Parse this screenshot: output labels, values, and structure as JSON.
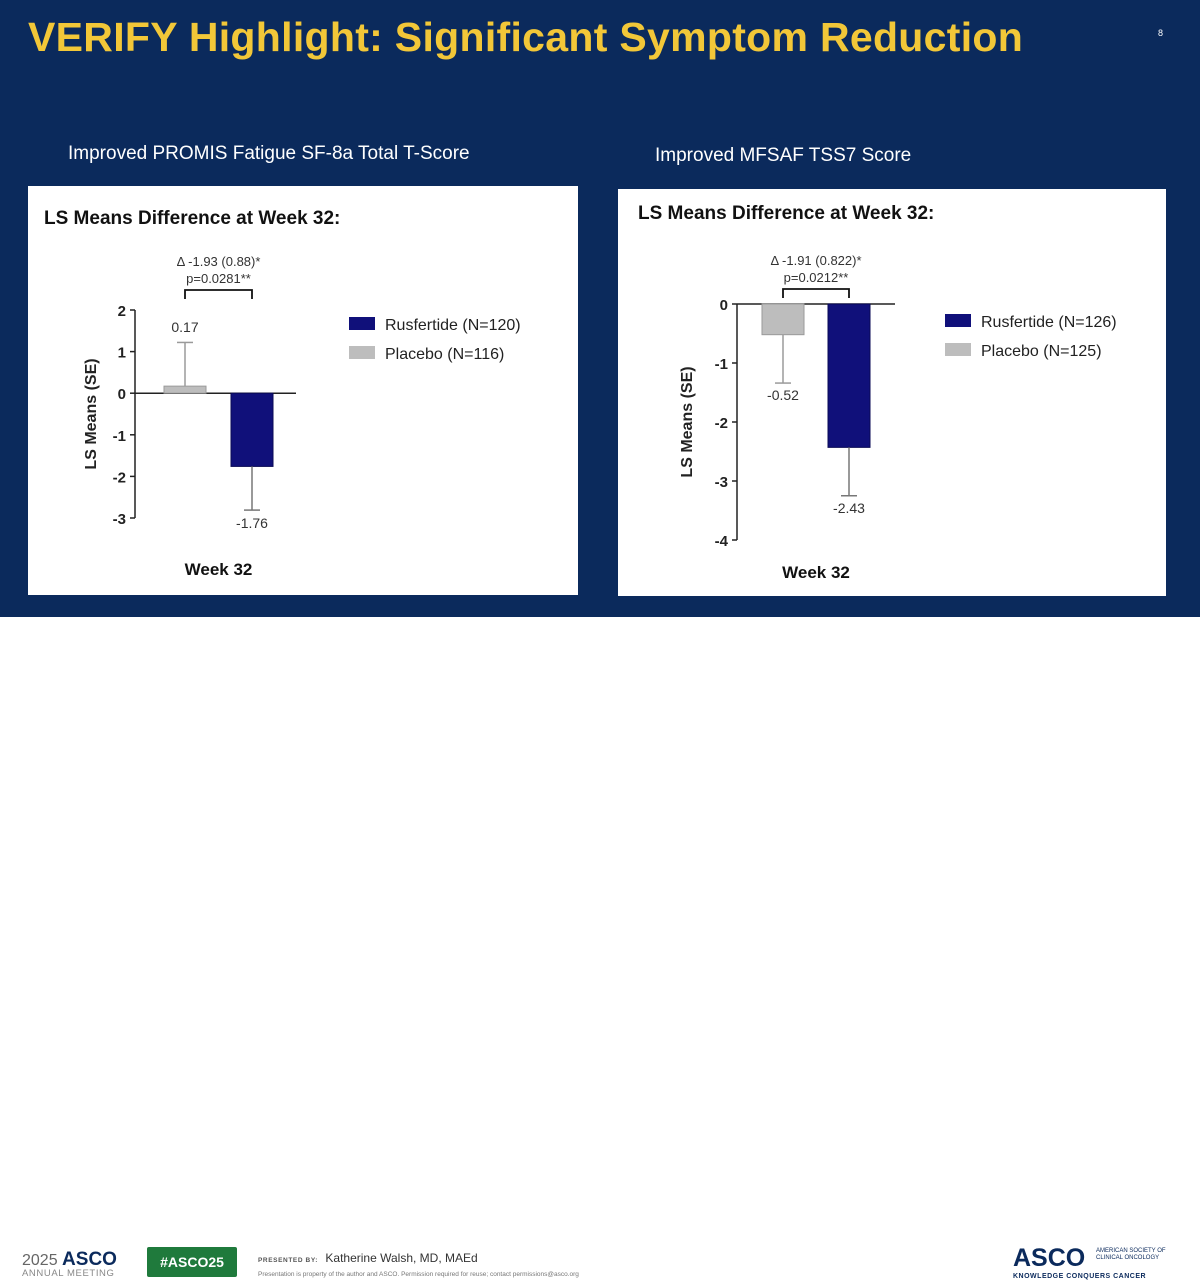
{
  "slide": {
    "title": "VERIFY Highlight: Significant Symptom Reduction",
    "slide_number": "8"
  },
  "colors": {
    "background": "#0b2a5c",
    "title": "#f2c738",
    "rusfertide": "#10107a",
    "placebo": "#bdbdbd"
  },
  "chart_data": [
    {
      "type": "bar",
      "subtitle": "Improved PROMIS Fatigue SF-8a Total T-Score",
      "title": "LS Means Difference at Week 32:",
      "delta_text": "Δ -1.93 (0.88)*",
      "p_text": "p=0.0281**",
      "xlabel": "Week 32",
      "ylabel": "LS Means (SE)",
      "ylim": [
        -3,
        2
      ],
      "yticks": [
        "2",
        "1",
        "0",
        "-1",
        "-2",
        "-3"
      ],
      "categories": [
        "Week 32"
      ],
      "series": [
        {
          "name": "Placebo",
          "legend": "Placebo (N=116)",
          "values": [
            0.17
          ],
          "se": [
            1.05
          ],
          "label": "0.17",
          "color": "#bdbdbd"
        },
        {
          "name": "Rusfertide",
          "legend": "Rusfertide (N=120)",
          "values": [
            -1.76
          ],
          "se": [
            1.05
          ],
          "label": "-1.76",
          "color": "#10107a"
        }
      ]
    },
    {
      "type": "bar",
      "subtitle": "Improved MFSAF TSS7 Score",
      "title": "LS Means Difference at Week 32:",
      "delta_text": "Δ -1.91 (0.822)*",
      "p_text": "p=0.0212**",
      "xlabel": "Week 32",
      "ylabel": "LS Means (SE)",
      "ylim": [
        -4,
        0
      ],
      "yticks": [
        "0",
        "-1",
        "-2",
        "-3",
        "-4"
      ],
      "categories": [
        "Week 32"
      ],
      "series": [
        {
          "name": "Placebo",
          "legend": "Placebo (N=125)",
          "values": [
            -0.52
          ],
          "se": [
            0.82
          ],
          "label": "-0.52",
          "color": "#bdbdbd"
        },
        {
          "name": "Rusfertide",
          "legend": "Rusfertide (N=126)",
          "values": [
            -2.43
          ],
          "se": [
            0.82
          ],
          "label": "-2.43",
          "color": "#10107a"
        }
      ]
    }
  ],
  "footer": {
    "year": "2025",
    "meeting_brand": "ASCO",
    "meeting_sub": "ANNUAL MEETING",
    "hashtag": "#ASCO25",
    "presented_label": "PRESENTED BY:",
    "presenter": "Katherine Walsh, MD, MAEd",
    "disclaimer": "Presentation is property of the author and ASCO. Permission required for reuse; contact permissions@asco.org",
    "logo": "ASCO",
    "logo_side": "AMERICAN SOCIETY OF CLINICAL ONCOLOGY",
    "tagline": "KNOWLEDGE CONQUERS CANCER"
  }
}
